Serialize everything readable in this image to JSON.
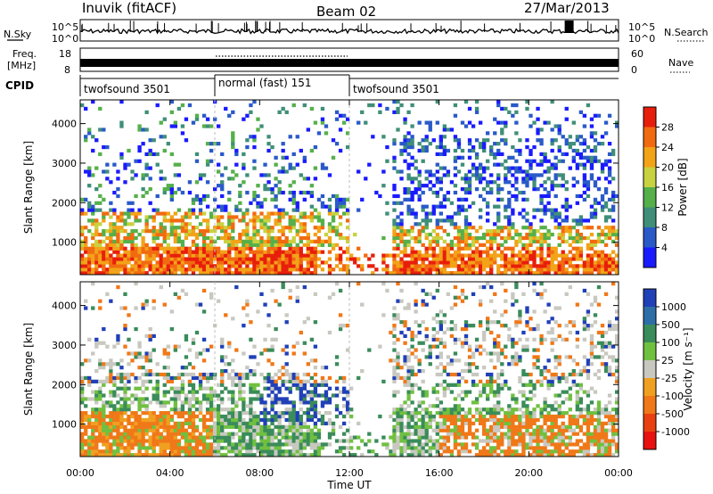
{
  "header": {
    "radar": "Inuvik (fitACF)",
    "beam": "Beam 02",
    "date": "27/Mar/2013"
  },
  "top_panels": {
    "nsky_label": "N.Sky",
    "nsky_ticks": [
      "10^5",
      "10^0"
    ],
    "nsearch_label": "N.Search",
    "freq_label_1": "Freq.",
    "freq_label_2": "[MHz]",
    "freq_ticks": [
      "18",
      "8"
    ],
    "nave_label": "Nave",
    "nave_ticks": [
      "60",
      "0"
    ],
    "cpid_label": "CPID",
    "cpid_segments": [
      {
        "label": "twofsound 3501",
        "start_h": 0,
        "end_h": 6
      },
      {
        "label": "normal (fast) 151",
        "start_h": 6,
        "end_h": 12
      },
      {
        "label": "twofsound 3501",
        "start_h": 12,
        "end_h": 24
      }
    ]
  },
  "chart_data": [
    {
      "type": "heatmap",
      "quantity": "power",
      "ylabel": "Slant Range [km]",
      "xlim_hours": [
        0,
        24
      ],
      "ylim_km": [
        180,
        4600
      ],
      "yticks": [
        1000,
        2000,
        3000,
        4000
      ],
      "colorbar": {
        "label": "Power [dB]",
        "ticks": [
          "4",
          "8",
          "12",
          "16",
          "20",
          "24",
          "28"
        ],
        "colors": [
          "#1a1aff",
          "#2a5ac8",
          "#3f8f78",
          "#55b04a",
          "#c8d240",
          "#f2a318",
          "#f26a10",
          "#e81e0c"
        ]
      }
    },
    {
      "type": "heatmap",
      "quantity": "velocity",
      "ylabel": "Slant Range [km]",
      "xlabel": "Time UT",
      "xlim_hours": [
        0,
        24
      ],
      "ylim_km": [
        180,
        4600
      ],
      "yticks": [
        1000,
        2000,
        3000,
        4000
      ],
      "xticks": [
        "00:00",
        "04:00",
        "08:00",
        "12:00",
        "16:00",
        "20:00",
        "00:00"
      ],
      "colorbar": {
        "label": "Velocity [m s⁻¹]",
        "ticks": [
          "1000",
          "500",
          "100",
          "25",
          "-25",
          "-100",
          "-500",
          "-1000"
        ],
        "colors": [
          "#2040b8",
          "#2e6ea8",
          "#3a8c5a",
          "#70c040",
          "#c8c8c0",
          "#f0a020",
          "#f07818",
          "#e84010",
          "#e81010"
        ]
      }
    }
  ]
}
